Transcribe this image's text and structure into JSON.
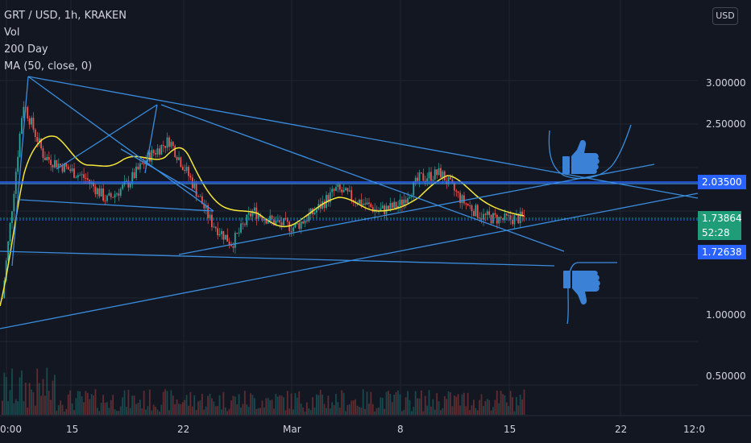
{
  "legend": {
    "symbol": "GRT / USD, 1h, KRAKEN",
    "vol": "Vol",
    "day200": "200 Day",
    "ma": "MA (50, close, 0)"
  },
  "currency_button": "USD",
  "price_axis": {
    "ticks": [
      "3.00000",
      "2.50000",
      "1.00000",
      "0.50000"
    ],
    "level_upper": "2.03500",
    "current_price": "1.73864",
    "countdown": "52:28",
    "level_lower": "1.72638"
  },
  "time_axis": {
    "ticks": [
      "0:00",
      "15",
      "22",
      "Mar",
      "8",
      "15",
      "22",
      "12:0"
    ]
  },
  "colors": {
    "background": "#131722",
    "trendline": "#2962ff",
    "drawing": "#3a8dde",
    "ma": "#f5e63a",
    "up": "#26a69a",
    "down": "#ef5350",
    "current": "#1e9d78",
    "level": "#2962ff"
  },
  "chart_data": {
    "type": "candlestick",
    "title": "GRT / USD, 1h, KRAKEN",
    "y_axis": {
      "ticks": [
        3.0,
        2.5,
        1.0,
        0.5
      ],
      "range": [
        0.3,
        3.3
      ]
    },
    "x_axis": {
      "ticks": [
        "0:00",
        "15",
        "22",
        "Mar",
        "8",
        "15",
        "22",
        "12:0"
      ]
    },
    "series": [
      {
        "name": "MA (50, close, 0)",
        "values": [
          1.1,
          1.6,
          2.2,
          2.3,
          2.25,
          2.1,
          2.05,
          2.0,
          2.1,
          2.15,
          2.3,
          2.25,
          2.0,
          1.8,
          1.78,
          1.75,
          1.72,
          1.8,
          1.85,
          1.9,
          1.82,
          1.8,
          1.85,
          1.9,
          2.0,
          1.95,
          1.8,
          1.75,
          1.74
        ]
      }
    ],
    "price_path": [
      1.0,
      2.8,
      2.3,
      2.2,
      2.1,
      1.9,
      2.05,
      2.3,
      2.45,
      2.1,
      1.7,
      1.5,
      1.8,
      1.7,
      1.65,
      1.8,
      2.0,
      1.9,
      1.8,
      1.85,
      2.1,
      2.15,
      1.9,
      1.75,
      1.72,
      1.74
    ],
    "levels": [
      2.035,
      1.73864,
      1.72638
    ],
    "annotations": [
      "thumbs-up",
      "thumbs-down"
    ]
  }
}
